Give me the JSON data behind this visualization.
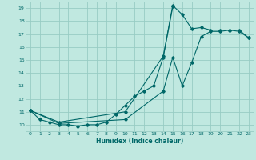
{
  "xlabel": "Humidex (Indice chaleur)",
  "bg_color": "#c0e8e0",
  "grid_color": "#98ccc4",
  "line_color": "#006868",
  "xlim": [
    -0.5,
    23.5
  ],
  "ylim": [
    9.5,
    19.5
  ],
  "xticks": [
    0,
    1,
    2,
    3,
    4,
    5,
    6,
    7,
    8,
    9,
    10,
    11,
    12,
    13,
    14,
    15,
    16,
    17,
    18,
    19,
    20,
    21,
    22,
    23
  ],
  "yticks": [
    10,
    11,
    12,
    13,
    14,
    15,
    16,
    17,
    18,
    19
  ],
  "curve1_x": [
    0,
    1,
    2,
    3,
    4,
    5,
    6,
    7,
    8,
    9,
    10,
    11,
    12,
    13,
    14,
    15
  ],
  "curve1_y": [
    11.1,
    10.4,
    10.2,
    10.0,
    10.0,
    9.9,
    10.0,
    10.0,
    10.2,
    10.8,
    11.5,
    12.2,
    12.6,
    13.0,
    15.2,
    19.1
  ],
  "curve2_x": [
    0,
    3,
    10,
    14,
    15,
    16,
    17,
    18,
    19,
    20,
    21,
    22,
    23
  ],
  "curve2_y": [
    11.1,
    10.2,
    11.0,
    15.3,
    19.2,
    18.5,
    17.4,
    17.5,
    17.3,
    17.3,
    17.3,
    17.3,
    16.7
  ],
  "curve3_x": [
    0,
    3,
    10,
    14,
    15,
    16,
    17,
    18,
    19,
    20,
    21,
    22,
    23
  ],
  "curve3_y": [
    11.1,
    10.1,
    10.4,
    12.6,
    15.2,
    13.0,
    14.8,
    16.8,
    17.2,
    17.2,
    17.3,
    17.2,
    16.7
  ]
}
